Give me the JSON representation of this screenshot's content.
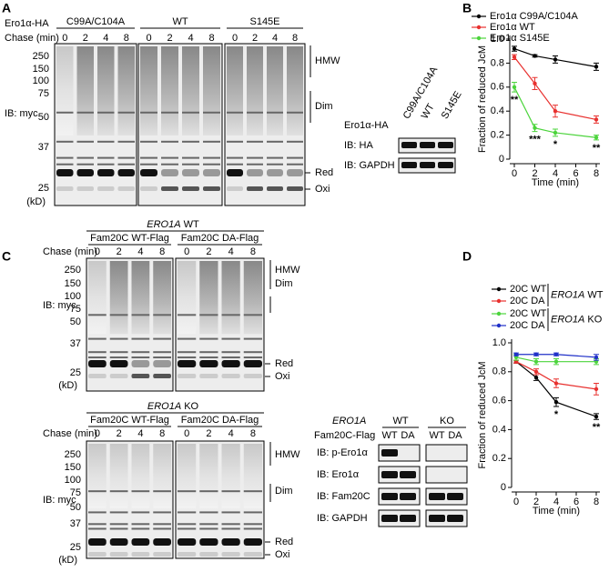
{
  "panel_a": {
    "letter": "A",
    "construct_label": "Ero1α-HA",
    "groups": [
      "C99A/C104A",
      "WT",
      "S145E"
    ],
    "chase_label": "Chase (min)",
    "lanes": [
      0,
      2,
      4,
      8
    ],
    "ib": "IB: myc",
    "mw": [
      250,
      150,
      100,
      75,
      50,
      37,
      25
    ],
    "unit": "(kD)",
    "bands": [
      "HMW",
      "Dim",
      "Red",
      "Oxi"
    ],
    "inset": {
      "construct_label": "Ero1α-HA",
      "groups": [
        "C99A/C104A",
        "WT",
        "S145E"
      ],
      "rows": [
        "IB: HA",
        "IB: GAPDH"
      ]
    }
  },
  "panel_c": {
    "letter": "C",
    "blots": [
      {
        "gene": "ERO1A",
        "genotype": "WT",
        "groups": [
          "Fam20C WT-Flag",
          "Fam20C DA-Flag"
        ],
        "chase_label": "Chase (min)",
        "lanes": [
          0,
          2,
          4,
          8
        ],
        "ib": "IB: myc",
        "mw": [
          250,
          150,
          100,
          75,
          50,
          37,
          25
        ],
        "unit": "(kD)",
        "bands": [
          "HMW",
          "Dim",
          "Red",
          "Oxi"
        ]
      },
      {
        "gene": "ERO1A",
        "genotype": "KO",
        "groups": [
          "Fam20C WT-Flag",
          "Fam20C DA-Flag"
        ],
        "chase_label": "Chase (min)",
        "lanes": [
          0,
          2,
          4,
          8
        ],
        "ib": "IB: myc",
        "mw": [
          250,
          150,
          100,
          75,
          50,
          37,
          25
        ],
        "unit": "(kD)",
        "bands": [
          "HMW",
          "Dim",
          "Red",
          "Oxi"
        ]
      }
    ],
    "inset": {
      "gene": "ERO1A",
      "genotypes": [
        "WT",
        "KO"
      ],
      "flag_label": "Fam20C-Flag",
      "flag_lanes": [
        "WT",
        "DA",
        "WT",
        "DA"
      ],
      "rows": [
        "IB: p-Ero1α",
        "IB: Ero1α",
        "IB: Fam20C",
        "IB: GAPDH"
      ]
    }
  },
  "chart_data": [
    {
      "type": "line",
      "label": "B",
      "x": [
        0,
        2,
        4,
        8
      ],
      "xlim": [
        0,
        8
      ],
      "xticks": [
        0,
        2,
        4,
        6,
        8
      ],
      "ylim": [
        0,
        1
      ],
      "yticks": [
        0,
        0.2,
        0.4,
        0.6,
        0.8,
        {
          "value": 1,
          "label": "1.0"
        }
      ],
      "x_label": "Time (min)",
      "y_label": "Fraction of reduced JcM",
      "series": [
        {
          "name": "Ero1α C99A/C104A",
          "color": "#000000",
          "values": [
            0.92,
            0.86,
            0.83,
            0.77
          ],
          "errors": [
            0.02,
            0.01,
            0.03,
            0.03
          ]
        },
        {
          "name": "Ero1α WT",
          "color": "#e8312f",
          "values": [
            0.85,
            0.63,
            0.4,
            0.33
          ],
          "errors": [
            0.02,
            0.05,
            0.05,
            0.03
          ]
        },
        {
          "name": "Ero1α S145E",
          "color": "#4cd43c",
          "values": [
            0.6,
            0.26,
            0.22,
            0.18
          ],
          "errors": [
            0.04,
            0.03,
            0.03,
            0.02
          ]
        }
      ],
      "annotations": [
        {
          "x": 0,
          "text": "**"
        },
        {
          "x": 2,
          "text": "***"
        },
        {
          "x": 4,
          "text": "*"
        },
        {
          "x": 8,
          "text": "**"
        }
      ]
    },
    {
      "type": "line",
      "label": "D",
      "x": [
        0,
        2,
        4,
        8
      ],
      "xlim": [
        0,
        8
      ],
      "xticks": [
        0,
        2,
        4,
        6,
        8
      ],
      "ylim": [
        0,
        1
      ],
      "yticks": [
        0,
        0.2,
        0.4,
        0.6,
        0.8,
        {
          "value": 1,
          "label": "1.0"
        }
      ],
      "x_label": "Time (min)",
      "y_label": "Fraction of reduced JcM",
      "legend_groups": [
        {
          "gene": "ERO1A",
          "genotype": "WT"
        },
        {
          "gene": "ERO1A",
          "genotype": "KO"
        }
      ],
      "series": [
        {
          "name": "20C WT",
          "color": "#000000",
          "values": [
            0.87,
            0.76,
            0.59,
            0.49
          ],
          "errors": [
            0.01,
            0.02,
            0.03,
            0.02
          ]
        },
        {
          "name": "20C DA",
          "color": "#e8312f",
          "values": [
            0.87,
            0.8,
            0.72,
            0.68
          ],
          "errors": [
            0.01,
            0.02,
            0.03,
            0.04
          ]
        },
        {
          "name": "20C WT",
          "color": "#4cd43c",
          "values": [
            0.9,
            0.87,
            0.87,
            0.87
          ],
          "errors": [
            0.02,
            0.02,
            0.02,
            0.02
          ]
        },
        {
          "name": "20C DA",
          "color": "#2030c8",
          "values": [
            0.92,
            0.92,
            0.92,
            0.9
          ],
          "errors": [
            0.01,
            0.01,
            0.01,
            0.02
          ]
        }
      ],
      "annotations": [
        {
          "x": 4,
          "text": "*"
        },
        {
          "x": 8,
          "text": "**"
        }
      ]
    }
  ]
}
